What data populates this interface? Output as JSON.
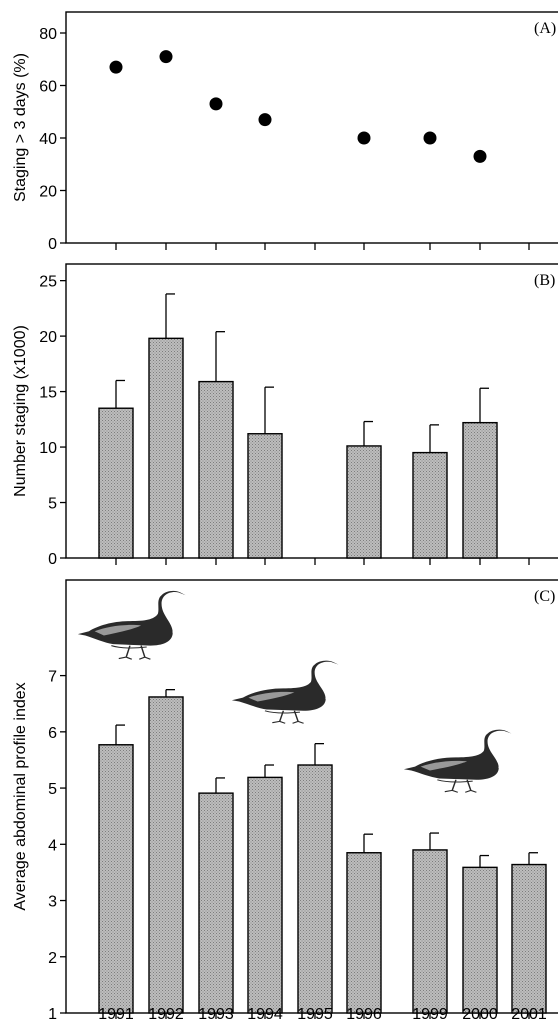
{
  "chart_data": [
    {
      "type": "scatter",
      "panel_label": "(A)",
      "ylabel": "Staging > 3 days (%)",
      "ylim": [
        0,
        88
      ],
      "yticks": [
        0,
        20,
        40,
        60,
        80
      ],
      "x": [
        "1991",
        "1992",
        "1993",
        "1994",
        "1996",
        "1999",
        "2000"
      ],
      "values": [
        67,
        71,
        53,
        47,
        40,
        40,
        33
      ]
    },
    {
      "type": "bar",
      "panel_label": "(B)",
      "ylabel": "Number staging (x1000)",
      "ylim": [
        0,
        26.5
      ],
      "yticks": [
        0,
        5,
        10,
        15,
        20,
        25
      ],
      "categories": [
        "1991",
        "1992",
        "1993",
        "1994",
        "1996",
        "1999",
        "2000"
      ],
      "values": [
        13.5,
        19.8,
        15.9,
        11.2,
        10.1,
        9.5,
        12.2
      ],
      "error_upper": [
        16.0,
        23.8,
        20.4,
        15.4,
        12.3,
        12.0,
        15.3
      ]
    },
    {
      "type": "bar",
      "panel_label": "(C)",
      "ylabel": "Average abdominal profile index",
      "ylim": [
        1,
        8.7
      ],
      "yticks": [
        1,
        2,
        3,
        4,
        5,
        6,
        7
      ],
      "categories": [
        "1991",
        "1992",
        "1993",
        "1994",
        "1995",
        "1996",
        "1999",
        "2000",
        "2001"
      ],
      "values": [
        5.77,
        6.62,
        4.91,
        5.19,
        5.41,
        3.85,
        3.9,
        3.59,
        3.64
      ],
      "error_upper": [
        6.12,
        6.75,
        5.18,
        5.41,
        5.79,
        4.18,
        4.2,
        3.8,
        3.85
      ]
    }
  ],
  "x_axis_years": [
    "1991",
    "1992",
    "1993",
    "1994",
    "1995",
    "1996",
    "1999",
    "2000",
    "2001"
  ],
  "colors": {
    "bar_fill": "#b9b9b9",
    "axis": "#000000",
    "marker": "#000000"
  },
  "illustrations": [
    "goose-drawing",
    "goose-drawing",
    "goose-drawing"
  ]
}
